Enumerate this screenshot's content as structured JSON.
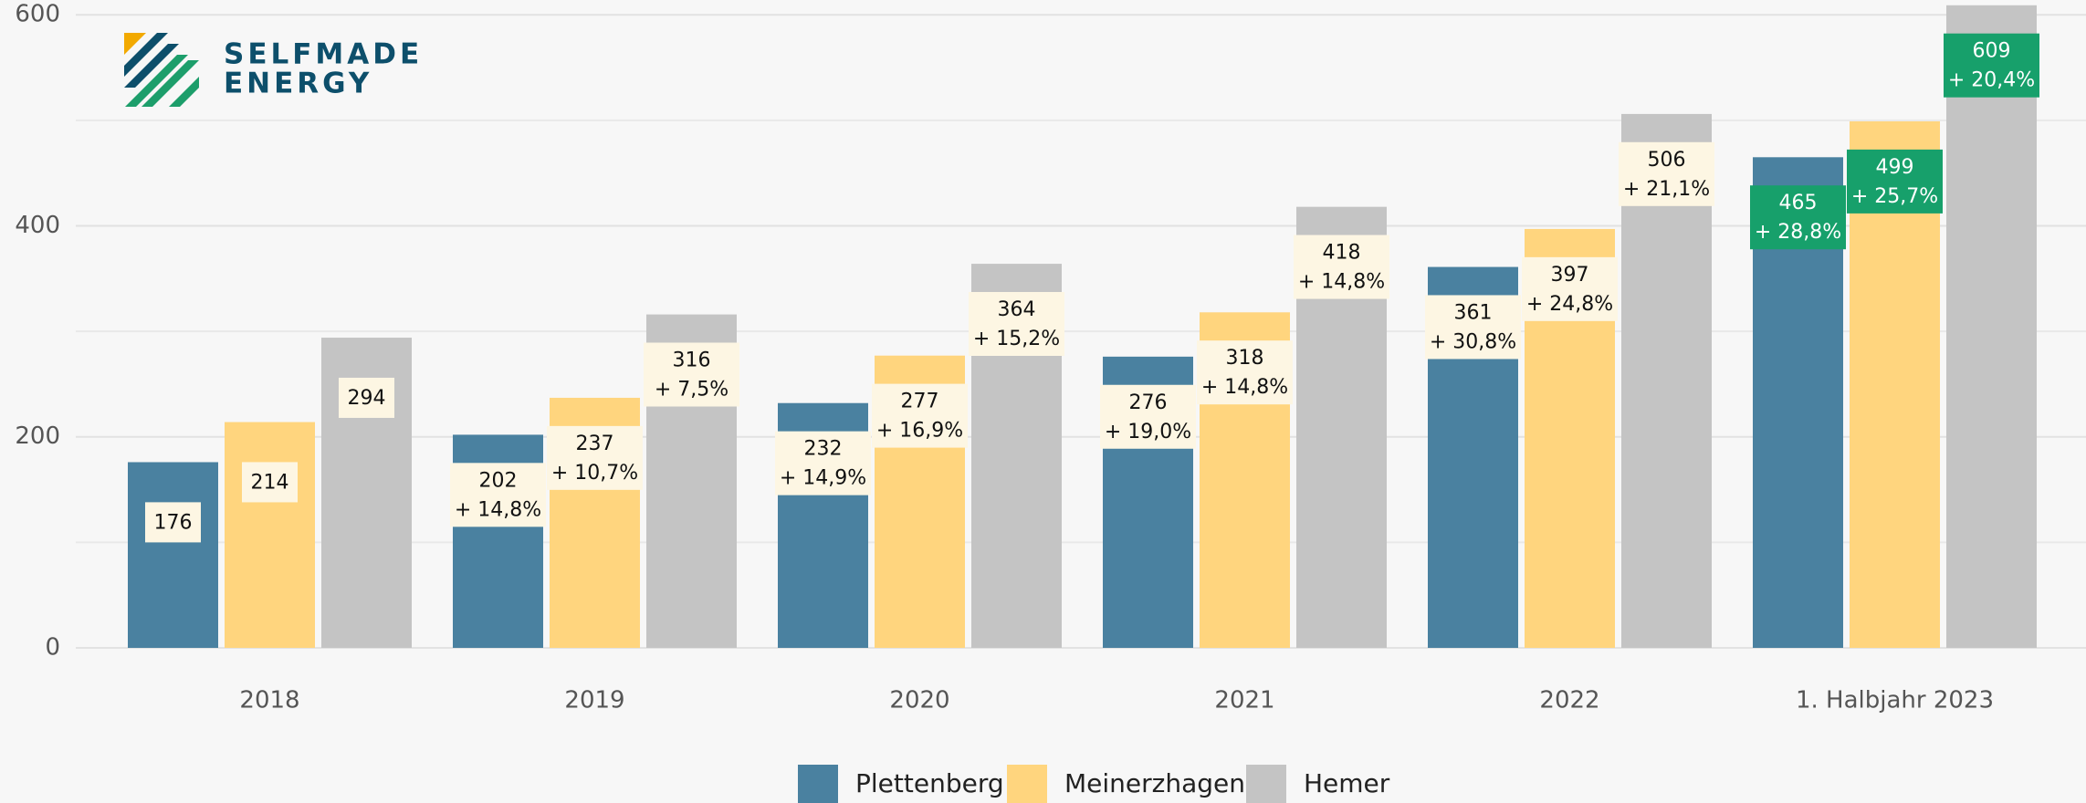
{
  "chart_data": {
    "type": "bar",
    "logo": [
      "SELFMADE",
      "ENERGY"
    ],
    "categories": [
      "2018",
      "2019",
      "2020",
      "2021",
      "2022",
      "1. Halbjahr 2023"
    ],
    "series": [
      {
        "name": "Plettenberg",
        "color": "#4a81a0",
        "values": [
          176,
          202,
          232,
          276,
          361,
          465
        ],
        "change_labels": [
          null,
          "+ 14,8%",
          "+ 14,9%",
          "+ 19,0%",
          "+ 30,8%",
          "+ 28,8%"
        ]
      },
      {
        "name": "Meinerzhagen",
        "color": "#ffd57e",
        "values": [
          214,
          237,
          277,
          318,
          397,
          499
        ],
        "change_labels": [
          null,
          "+ 10,7%",
          "+ 16,9%",
          "+ 14,8%",
          "+ 24,8%",
          "+ 25,7%"
        ]
      },
      {
        "name": "Hemer",
        "color": "#c4c4c4",
        "values": [
          294,
          316,
          364,
          418,
          506,
          609
        ],
        "change_labels": [
          null,
          "+ 7,5%",
          "+ 15,2%",
          "+ 14,8%",
          "+ 21,1%",
          "+ 20,4%"
        ]
      }
    ],
    "ylim": [
      0,
      614
    ],
    "yticks": [
      0,
      200,
      400,
      600
    ],
    "minor_yticks": [
      100,
      300,
      500
    ],
    "grid": true,
    "label_color": "#fdf6e3",
    "highlight_color": "#17a06b",
    "highlight_categories": [
      5
    ],
    "legend": "bottom"
  }
}
